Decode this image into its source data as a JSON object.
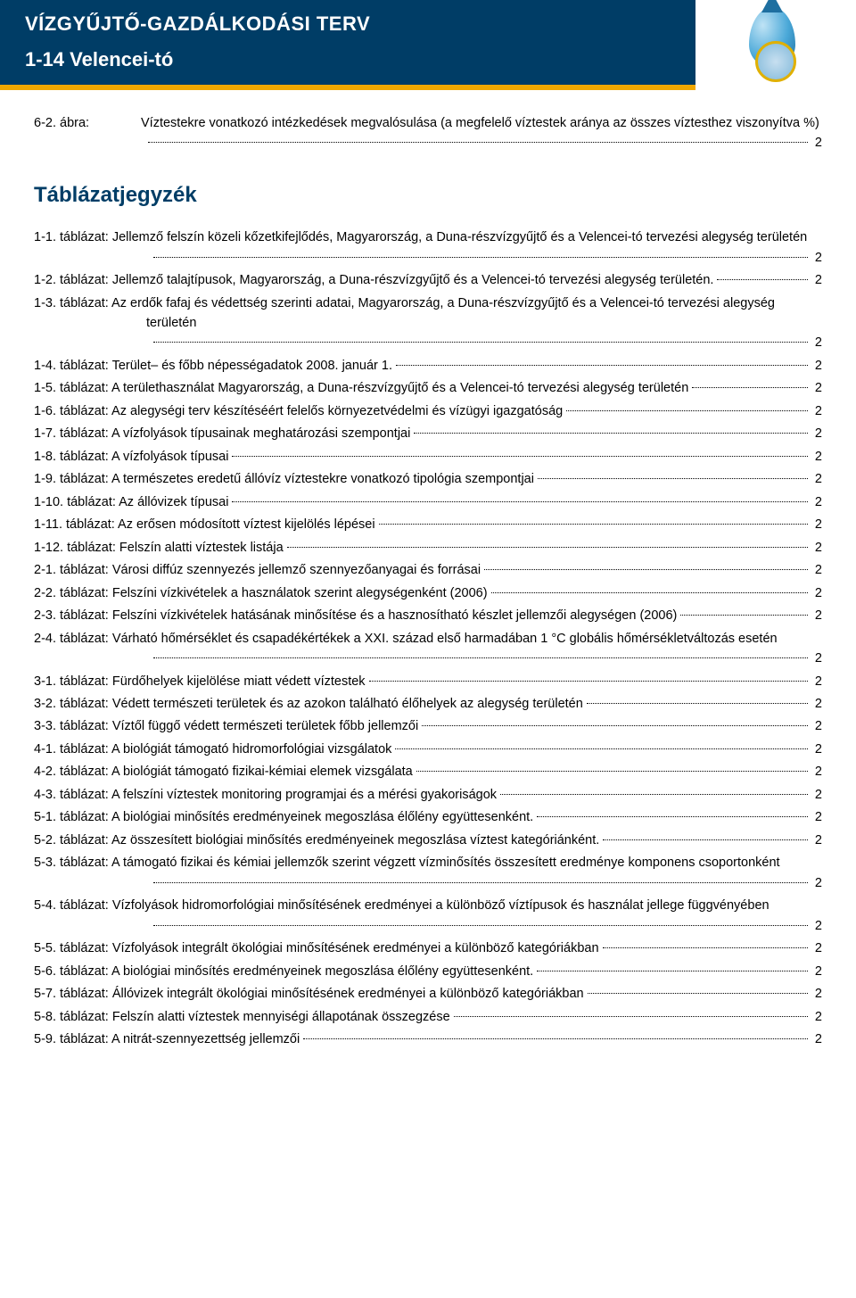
{
  "header": {
    "line1": "VÍZGYŰJTŐ-GAZDÁLKODÁSI TERV",
    "line2": "1-14 Velencei-tó",
    "band_color": "#003d66",
    "accent_color": "#f0a800"
  },
  "abra": {
    "label": "6-2. ábra:",
    "text": "Víztestekre vonatkozó intézkedések megvalósulása (a megfelelő víztestek aránya az összes víztesthez viszonyítva %)",
    "page": "2"
  },
  "section_title": "Táblázatjegyzék",
  "toc": [
    {
      "text": "1-1. táblázat: Jellemző felszín közeli kőzetkifejlődés, Magyarország, a Duna-részvízgyűjtő és a Velencei-tó tervezési alegység területén",
      "page": "2",
      "wrap_indent": true
    },
    {
      "text": "1-2. táblázat: Jellemző talajtípusok, Magyarország, a Duna-részvízgyűjtő és a Velencei-tó tervezési alegység területén.",
      "page": "2"
    },
    {
      "text": "1-3. táblázat: Az erdők fafaj és védettség szerinti adatai, Magyarország, a Duna-részvízgyűjtő és a Velencei-tó tervezési alegység területén",
      "page": "2",
      "wrap_indent": true
    },
    {
      "text": "1-4. táblázat: Terület– és főbb népességadatok 2008. január 1.",
      "page": "2"
    },
    {
      "text": "1-5. táblázat: A területhasználat Magyarország, a Duna-részvízgyűjtő és a Velencei-tó tervezési alegység területén",
      "page": "2"
    },
    {
      "text": "1-6. táblázat:  Az alegységi terv készítéséért felelős környezetvédelmi és vízügyi igazgatóság",
      "page": "2"
    },
    {
      "text": "1-7. táblázat: A vízfolyások típusainak meghatározási szempontjai",
      "page": "2"
    },
    {
      "text": "1-8. táblázat: A vízfolyások típusai",
      "page": "2"
    },
    {
      "text": "1-9. táblázat: A természetes eredetű állóvíz víztestekre vonatkozó tipológia szempontjai",
      "page": "2"
    },
    {
      "text": "1-10. táblázat: Az állóvizek típusai",
      "page": "2"
    },
    {
      "text": "1-11. táblázat: Az erősen módosított víztest kijelölés lépései",
      "page": "2"
    },
    {
      "text": "1-12. táblázat: Felszín alatti víztestek listája",
      "page": "2"
    },
    {
      "text": "2-1. táblázat:  Városi diffúz szennyezés jellemző szennyezőanyagai és forrásai",
      "page": "2"
    },
    {
      "text": "2-2. táblázat:  Felszíni vízkivételek a használatok szerint alegységenként (2006)",
      "page": "2"
    },
    {
      "text": "2-3. táblázat:  Felszíni vízkivételek hatásának minősítése és a hasznosítható készlet jellemzői alegységen (2006)",
      "page": "2"
    },
    {
      "text": "2-4. táblázat:  Várható hőmérséklet és csapadékértékek a XXI. század első harmadában 1 °C globális hőmérsékletváltozás esetén",
      "page": "2",
      "wrap_indent": true
    },
    {
      "text": "3-1. táblázat: Fürdőhelyek kijelölése miatt védett víztestek",
      "page": "2"
    },
    {
      "text": "3-2. táblázat: Védett természeti területek és az azokon található élőhelyek az alegység területén",
      "page": "2"
    },
    {
      "text": "3-3. táblázat: Víztől függő védett természeti területek főbb jellemzői",
      "page": "2"
    },
    {
      "text": "4-1. táblázat: A biológiát támogató hidromorfológiai vizsgálatok",
      "page": "2"
    },
    {
      "text": "4-2. táblázat: A biológiát támogató fizikai-kémiai elemek vizsgálata",
      "page": "2"
    },
    {
      "text": "4-3. táblázat: A felszíni víztestek monitoring programjai és a mérési gyakoriságok",
      "page": "2"
    },
    {
      "text": "5-1. táblázat: A biológiai minősítés eredményeinek megoszlása élőlény együttesenként.",
      "page": "2"
    },
    {
      "text": "5-2. táblázat: Az összesített biológiai minősítés eredményeinek megoszlása víztest kategóriánként.",
      "page": "2"
    },
    {
      "text": "5-3. táblázat: A támogató fizikai és kémiai jellemzők szerint végzett vízminősítés összesített eredménye komponens csoportonként",
      "page": "2",
      "wrap_indent": true
    },
    {
      "text": "5-4. táblázat: Vízfolyások hidromorfológiai minősítésének eredményei a különböző víztípusok és használat jellege függvényében",
      "page": "2",
      "wrap_indent": true
    },
    {
      "text": "5-5. táblázat: Vízfolyások integrált ökológiai minősítésének eredményei a különböző kategóriákban",
      "page": "2"
    },
    {
      "text": "5-6. táblázat: A biológiai minősítés eredményeinek megoszlása élőlény együttesenként.",
      "page": "2"
    },
    {
      "text": "5-7. táblázat: Állóvizek integrált ökológiai minősítésének eredményei a különböző kategóriákban",
      "page": "2"
    },
    {
      "text": "5-8. táblázat: Felszín alatti víztestek mennyiségi állapotának összegzése",
      "page": "2"
    },
    {
      "text": "5-9. táblázat: A nitrát-szennyezettség jellemzői",
      "page": "2"
    }
  ]
}
